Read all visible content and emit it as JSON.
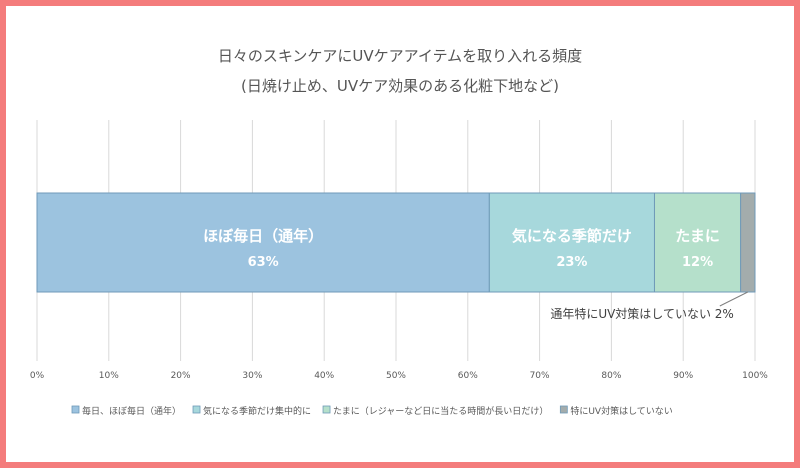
{
  "chart_data": {
    "type": "bar",
    "orientation": "horizontal",
    "stacked": true,
    "title": "日々のスキンケアにUVケアアイテムを取り入れる頻度",
    "subtitle": "(日焼け止め、UVケア効果のある化粧下地など)",
    "xlim": [
      0,
      100
    ],
    "x_ticks": [
      "0%",
      "10%",
      "20%",
      "30%",
      "40%",
      "50%",
      "60%",
      "70%",
      "80%",
      "90%",
      "100%"
    ],
    "grid": "vertical",
    "legend_position": "bottom",
    "series": [
      {
        "name": "毎日、ほぼ毎日（通年）",
        "value": 63,
        "bar_label": "ほぼ毎日（通年）",
        "value_label": "63%",
        "color": "#9cc3df"
      },
      {
        "name": "気になる季節だけ集中的に",
        "value": 23,
        "bar_label": "気になる季節だけ",
        "value_label": "23%",
        "color": "#a7d8dc"
      },
      {
        "name": "たまに（レジャーなど日に当たる時間が長い日だけ）",
        "value": 12,
        "bar_label": "たまに",
        "value_label": "12%",
        "color": "#b5e0cb"
      },
      {
        "name": "特にUV対策はしていない",
        "value": 2,
        "callout": "通年特にUV対策はしていない 2%",
        "color": "#a3acac"
      }
    ]
  }
}
